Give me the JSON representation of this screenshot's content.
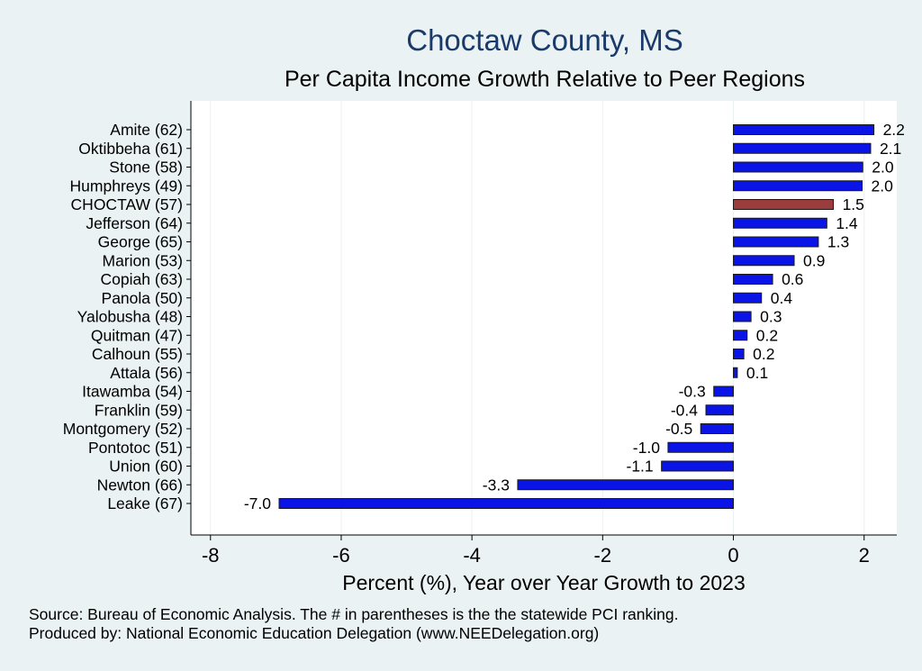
{
  "title": "Choctaw County, MS",
  "subtitle": "Per Capita Income Growth Relative to Peer Regions",
  "notes": {
    "source": "Source: Bureau of Economic Analysis. The # in parentheses is the the statewide PCI ranking.",
    "produced_by": "Produced by: National Economic Education Delegation (www.NEEDelegation.org)"
  },
  "colors": {
    "background": "#eaf2f3",
    "plot_background": "#ffffff",
    "bar": "#0a14e6",
    "highlight_bar": "#9b3d3d",
    "title": "#1a3a6b",
    "gridline": "#eaf2f3"
  },
  "chart_data": {
    "type": "bar",
    "orientation": "horizontal",
    "title": "Choctaw County, MS",
    "subtitle": "Per Capita Income Growth Relative to Peer Regions",
    "xlabel": "Percent (%), Year over Year Growth to 2023",
    "ylabel": "",
    "xlim": [
      -8.3,
      2.5
    ],
    "xticks": [
      -8,
      -6,
      -4,
      -2,
      0,
      2
    ],
    "xtick_labels": [
      "-8",
      "-6",
      "-4",
      "-2",
      "0",
      "2"
    ],
    "grid": true,
    "highlight": "CHOCTAW (57)",
    "categories": [
      "Amite (62)",
      "Oktibbeha (61)",
      "Stone (58)",
      "Humphreys (49)",
      "CHOCTAW (57)",
      "Jefferson (64)",
      "George (65)",
      "Marion (53)",
      "Copiah (63)",
      "Panola (50)",
      "Yalobusha (48)",
      "Quitman (47)",
      "Calhoun (55)",
      "Attala (56)",
      "Itawamba (54)",
      "Franklin (59)",
      "Montgomery (52)",
      "Pontotoc (51)",
      "Union (60)",
      "Newton (66)",
      "Leake (67)"
    ],
    "values": [
      2.15,
      2.1,
      1.98,
      1.97,
      1.53,
      1.43,
      1.3,
      0.93,
      0.6,
      0.43,
      0.27,
      0.21,
      0.16,
      0.06,
      -0.3,
      -0.42,
      -0.5,
      -1.0,
      -1.1,
      -3.3,
      -6.95
    ],
    "value_labels": [
      "2.2",
      "2.1",
      "2.0",
      "2.0",
      "1.5",
      "1.4",
      "1.3",
      "0.9",
      "0.6",
      "0.4",
      "0.3",
      "0.2",
      "0.2",
      "0.1",
      "-0.3",
      "-0.4",
      "-0.5",
      "-1.0",
      "-1.1",
      "-3.3",
      "-7.0"
    ]
  }
}
